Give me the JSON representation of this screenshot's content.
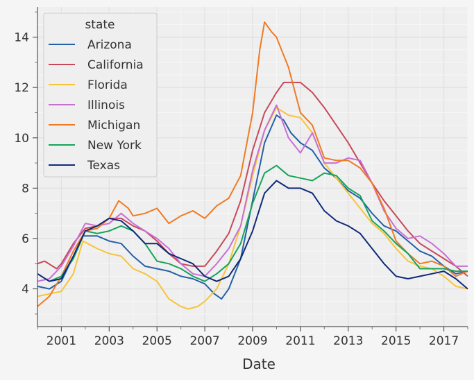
{
  "chart_data": {
    "type": "line",
    "title": "",
    "xlabel": "Date",
    "ylabel": "",
    "xlim": [
      2000.0,
      2018.0
    ],
    "ylim": [
      2.5,
      15.2
    ],
    "xticks": [
      2001,
      2003,
      2005,
      2007,
      2009,
      2011,
      2013,
      2015,
      2017
    ],
    "xtick_labels": [
      "2001",
      "2003",
      "2005",
      "2007",
      "2009",
      "2011",
      "2013",
      "2015",
      "2017"
    ],
    "yticks": [
      4,
      6,
      8,
      10,
      12,
      14
    ],
    "ytick_labels": [
      "4",
      "6",
      "8",
      "10",
      "12",
      "14"
    ],
    "grid": true,
    "legend": {
      "title": "state",
      "position": "upper-left"
    },
    "series": [
      {
        "name": "Arizona",
        "color": "#2460a7",
        "points": [
          [
            2000.0,
            4.1
          ],
          [
            2000.5,
            4.0
          ],
          [
            2001.0,
            4.3
          ],
          [
            2001.5,
            5.3
          ],
          [
            2001.9,
            6.1
          ],
          [
            2002.5,
            6.1
          ],
          [
            2003.0,
            5.9
          ],
          [
            2003.5,
            5.8
          ],
          [
            2004.0,
            5.3
          ],
          [
            2004.5,
            4.9
          ],
          [
            2005.0,
            4.8
          ],
          [
            2005.5,
            4.7
          ],
          [
            2006.0,
            4.5
          ],
          [
            2006.5,
            4.4
          ],
          [
            2007.0,
            4.2
          ],
          [
            2007.4,
            3.8
          ],
          [
            2007.7,
            3.6
          ],
          [
            2008.0,
            4.0
          ],
          [
            2008.5,
            5.2
          ],
          [
            2009.0,
            7.5
          ],
          [
            2009.5,
            9.8
          ],
          [
            2010.0,
            10.9
          ],
          [
            2010.3,
            10.7
          ],
          [
            2010.6,
            10.2
          ],
          [
            2011.0,
            9.8
          ],
          [
            2011.5,
            9.5
          ],
          [
            2012.0,
            8.8
          ],
          [
            2012.5,
            8.4
          ],
          [
            2013.0,
            7.9
          ],
          [
            2013.5,
            7.6
          ],
          [
            2014.0,
            7.0
          ],
          [
            2014.5,
            6.5
          ],
          [
            2015.0,
            6.3
          ],
          [
            2015.5,
            5.9
          ],
          [
            2016.0,
            5.5
          ],
          [
            2016.5,
            5.3
          ],
          [
            2017.0,
            4.9
          ],
          [
            2017.5,
            4.6
          ],
          [
            2018.0,
            4.7
          ]
        ]
      },
      {
        "name": "California",
        "color": "#c8485a",
        "points": [
          [
            2000.0,
            5.0
          ],
          [
            2000.3,
            5.1
          ],
          [
            2000.8,
            4.8
          ],
          [
            2001.0,
            5.0
          ],
          [
            2001.5,
            5.8
          ],
          [
            2002.0,
            6.4
          ],
          [
            2002.5,
            6.5
          ],
          [
            2003.0,
            6.8
          ],
          [
            2003.5,
            6.8
          ],
          [
            2004.0,
            6.5
          ],
          [
            2004.5,
            6.3
          ],
          [
            2005.0,
            5.9
          ],
          [
            2005.5,
            5.4
          ],
          [
            2006.0,
            5.0
          ],
          [
            2006.5,
            4.9
          ],
          [
            2007.0,
            4.9
          ],
          [
            2007.5,
            5.5
          ],
          [
            2008.0,
            6.2
          ],
          [
            2008.5,
            7.5
          ],
          [
            2009.0,
            9.5
          ],
          [
            2009.5,
            11.0
          ],
          [
            2010.0,
            11.8
          ],
          [
            2010.3,
            12.2
          ],
          [
            2010.6,
            12.2
          ],
          [
            2011.0,
            12.2
          ],
          [
            2011.5,
            11.8
          ],
          [
            2012.0,
            11.2
          ],
          [
            2012.5,
            10.5
          ],
          [
            2013.0,
            9.8
          ],
          [
            2013.5,
            9.0
          ],
          [
            2014.0,
            8.2
          ],
          [
            2014.5,
            7.5
          ],
          [
            2015.0,
            6.9
          ],
          [
            2015.5,
            6.3
          ],
          [
            2016.0,
            5.8
          ],
          [
            2016.5,
            5.5
          ],
          [
            2017.0,
            5.2
          ],
          [
            2017.5,
            4.9
          ],
          [
            2018.0,
            4.5
          ]
        ]
      },
      {
        "name": "Florida",
        "color": "#f7c437",
        "points": [
          [
            2000.0,
            3.7
          ],
          [
            2000.5,
            3.8
          ],
          [
            2001.0,
            3.9
          ],
          [
            2001.5,
            4.6
          ],
          [
            2001.9,
            5.9
          ],
          [
            2002.5,
            5.6
          ],
          [
            2003.0,
            5.4
          ],
          [
            2003.5,
            5.3
          ],
          [
            2004.0,
            4.8
          ],
          [
            2004.5,
            4.6
          ],
          [
            2005.0,
            4.3
          ],
          [
            2005.5,
            3.6
          ],
          [
            2006.0,
            3.3
          ],
          [
            2006.3,
            3.2
          ],
          [
            2006.7,
            3.3
          ],
          [
            2007.0,
            3.5
          ],
          [
            2007.5,
            4.0
          ],
          [
            2008.0,
            5.0
          ],
          [
            2008.5,
            6.5
          ],
          [
            2009.0,
            8.5
          ],
          [
            2009.5,
            10.3
          ],
          [
            2010.0,
            11.2
          ],
          [
            2010.5,
            10.9
          ],
          [
            2011.0,
            10.8
          ],
          [
            2011.5,
            10.2
          ],
          [
            2012.0,
            9.0
          ],
          [
            2012.5,
            8.4
          ],
          [
            2013.0,
            7.8
          ],
          [
            2013.5,
            7.2
          ],
          [
            2014.0,
            6.6
          ],
          [
            2014.5,
            6.2
          ],
          [
            2015.0,
            5.6
          ],
          [
            2015.5,
            5.1
          ],
          [
            2016.0,
            4.9
          ],
          [
            2016.5,
            4.8
          ],
          [
            2017.0,
            4.5
          ],
          [
            2017.5,
            4.1
          ],
          [
            2018.0,
            4.0
          ]
        ]
      },
      {
        "name": "Illinois",
        "color": "#c86fd4",
        "points": [
          [
            2000.0,
            4.3
          ],
          [
            2000.5,
            4.4
          ],
          [
            2001.0,
            4.9
          ],
          [
            2001.5,
            5.7
          ],
          [
            2002.0,
            6.6
          ],
          [
            2002.5,
            6.5
          ],
          [
            2003.0,
            6.6
          ],
          [
            2003.5,
            7.0
          ],
          [
            2004.0,
            6.6
          ],
          [
            2004.5,
            6.3
          ],
          [
            2005.0,
            6.0
          ],
          [
            2005.5,
            5.6
          ],
          [
            2006.0,
            5.0
          ],
          [
            2006.5,
            4.6
          ],
          [
            2007.0,
            4.5
          ],
          [
            2007.5,
            5.0
          ],
          [
            2008.0,
            5.6
          ],
          [
            2008.5,
            6.5
          ],
          [
            2009.0,
            8.7
          ],
          [
            2009.5,
            10.3
          ],
          [
            2010.0,
            11.3
          ],
          [
            2010.5,
            10.0
          ],
          [
            2011.0,
            9.4
          ],
          [
            2011.5,
            10.2
          ],
          [
            2012.0,
            9.0
          ],
          [
            2012.5,
            9.0
          ],
          [
            2013.0,
            9.2
          ],
          [
            2013.5,
            9.1
          ],
          [
            2014.0,
            8.2
          ],
          [
            2014.5,
            7.1
          ],
          [
            2015.0,
            6.4
          ],
          [
            2015.5,
            6.0
          ],
          [
            2016.0,
            6.1
          ],
          [
            2016.5,
            5.8
          ],
          [
            2017.0,
            5.4
          ],
          [
            2017.5,
            4.9
          ],
          [
            2018.0,
            4.9
          ]
        ]
      },
      {
        "name": "Michigan",
        "color": "#f07a22",
        "points": [
          [
            2000.0,
            3.3
          ],
          [
            2000.5,
            3.7
          ],
          [
            2001.0,
            4.5
          ],
          [
            2001.5,
            5.5
          ],
          [
            2002.0,
            6.3
          ],
          [
            2002.5,
            6.4
          ],
          [
            2003.0,
            6.8
          ],
          [
            2003.4,
            7.5
          ],
          [
            2003.8,
            7.2
          ],
          [
            2004.0,
            6.9
          ],
          [
            2004.5,
            7.0
          ],
          [
            2005.0,
            7.2
          ],
          [
            2005.5,
            6.6
          ],
          [
            2006.0,
            6.9
          ],
          [
            2006.5,
            7.1
          ],
          [
            2007.0,
            6.8
          ],
          [
            2007.5,
            7.3
          ],
          [
            2008.0,
            7.6
          ],
          [
            2008.5,
            8.5
          ],
          [
            2009.0,
            11.0
          ],
          [
            2009.3,
            13.5
          ],
          [
            2009.5,
            14.6
          ],
          [
            2009.8,
            14.2
          ],
          [
            2010.0,
            14.0
          ],
          [
            2010.5,
            12.8
          ],
          [
            2011.0,
            11.0
          ],
          [
            2011.5,
            10.5
          ],
          [
            2012.0,
            9.2
          ],
          [
            2012.5,
            9.1
          ],
          [
            2013.0,
            9.1
          ],
          [
            2013.5,
            8.8
          ],
          [
            2014.0,
            8.2
          ],
          [
            2014.5,
            7.2
          ],
          [
            2015.0,
            5.9
          ],
          [
            2015.5,
            5.4
          ],
          [
            2016.0,
            5.0
          ],
          [
            2016.5,
            5.1
          ],
          [
            2017.0,
            4.9
          ],
          [
            2017.5,
            4.5
          ],
          [
            2018.0,
            4.7
          ]
        ]
      },
      {
        "name": "New York",
        "color": "#14a45a",
        "points": [
          [
            2000.0,
            4.6
          ],
          [
            2000.5,
            4.3
          ],
          [
            2001.0,
            4.5
          ],
          [
            2001.5,
            5.2
          ],
          [
            2002.0,
            6.3
          ],
          [
            2002.5,
            6.2
          ],
          [
            2003.0,
            6.3
          ],
          [
            2003.5,
            6.5
          ],
          [
            2004.0,
            6.3
          ],
          [
            2004.5,
            5.8
          ],
          [
            2005.0,
            5.1
          ],
          [
            2005.5,
            5.0
          ],
          [
            2006.0,
            4.8
          ],
          [
            2006.5,
            4.5
          ],
          [
            2007.0,
            4.3
          ],
          [
            2007.5,
            4.6
          ],
          [
            2008.0,
            5.0
          ],
          [
            2008.5,
            5.8
          ],
          [
            2009.0,
            7.4
          ],
          [
            2009.5,
            8.6
          ],
          [
            2010.0,
            8.9
          ],
          [
            2010.5,
            8.5
          ],
          [
            2011.0,
            8.4
          ],
          [
            2011.5,
            8.3
          ],
          [
            2012.0,
            8.6
          ],
          [
            2012.5,
            8.5
          ],
          [
            2013.0,
            8.0
          ],
          [
            2013.5,
            7.7
          ],
          [
            2014.0,
            6.7
          ],
          [
            2014.5,
            6.3
          ],
          [
            2015.0,
            5.8
          ],
          [
            2015.5,
            5.4
          ],
          [
            2016.0,
            4.8
          ],
          [
            2016.5,
            4.8
          ],
          [
            2017.0,
            4.8
          ],
          [
            2017.5,
            4.7
          ],
          [
            2018.0,
            4.7
          ]
        ]
      },
      {
        "name": "Texas",
        "color": "#0e2a78",
        "points": [
          [
            2000.0,
            4.6
          ],
          [
            2000.5,
            4.3
          ],
          [
            2001.0,
            4.4
          ],
          [
            2001.5,
            5.3
          ],
          [
            2002.0,
            6.3
          ],
          [
            2002.5,
            6.5
          ],
          [
            2003.0,
            6.8
          ],
          [
            2003.5,
            6.7
          ],
          [
            2004.0,
            6.3
          ],
          [
            2004.5,
            5.8
          ],
          [
            2005.0,
            5.8
          ],
          [
            2005.5,
            5.4
          ],
          [
            2006.0,
            5.2
          ],
          [
            2006.5,
            5.0
          ],
          [
            2007.0,
            4.5
          ],
          [
            2007.5,
            4.3
          ],
          [
            2008.0,
            4.5
          ],
          [
            2008.5,
            5.2
          ],
          [
            2009.0,
            6.3
          ],
          [
            2009.5,
            7.8
          ],
          [
            2010.0,
            8.3
          ],
          [
            2010.5,
            8.0
          ],
          [
            2011.0,
            8.0
          ],
          [
            2011.5,
            7.8
          ],
          [
            2012.0,
            7.1
          ],
          [
            2012.5,
            6.7
          ],
          [
            2013.0,
            6.5
          ],
          [
            2013.5,
            6.2
          ],
          [
            2014.0,
            5.6
          ],
          [
            2014.5,
            5.0
          ],
          [
            2015.0,
            4.5
          ],
          [
            2015.5,
            4.4
          ],
          [
            2016.0,
            4.5
          ],
          [
            2016.5,
            4.6
          ],
          [
            2017.0,
            4.7
          ],
          [
            2017.5,
            4.4
          ],
          [
            2018.0,
            4.0
          ]
        ]
      }
    ]
  }
}
